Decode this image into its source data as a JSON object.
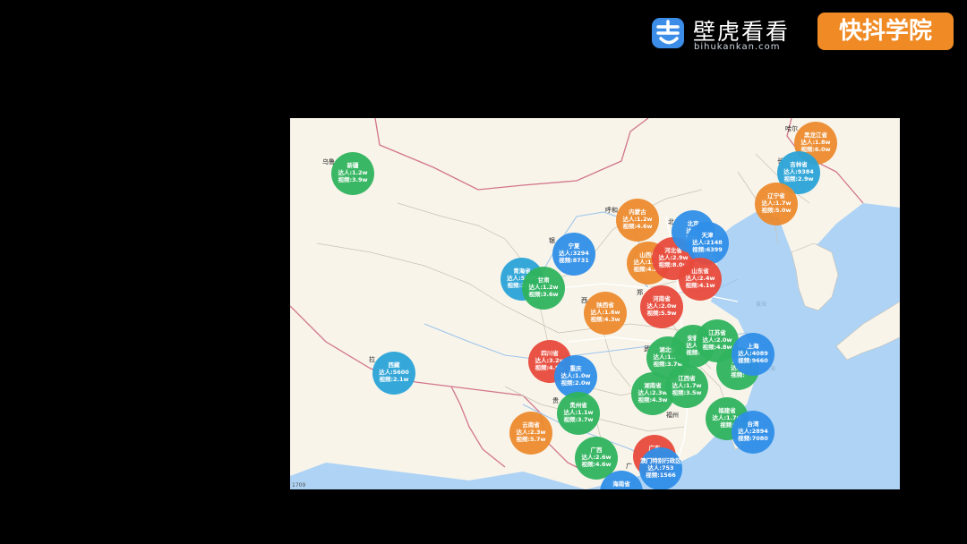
{
  "brand": {
    "bihu_name": "壁虎看看",
    "bihu_domain": "bihukankan.com",
    "kuaidou_label": "快抖学院",
    "colors": {
      "bihu_blue": "#3b8de8",
      "kuaidou_orange": "#f08a24"
    }
  },
  "map": {
    "scale_text": "1709",
    "colors": {
      "land": "#f8f4ea",
      "sea": "#aed3f5",
      "province_border": "#c9c2b2",
      "national_border": "#d2758c",
      "river": "#9fc6ea",
      "road": "#ffffff"
    },
    "place_labels": [
      {
        "id": "urumqi",
        "text": "乌鲁"
      },
      {
        "id": "hohhot",
        "text": "呼和"
      },
      {
        "id": "yinchuan",
        "text": "银"
      },
      {
        "id": "beijing",
        "text": "北"
      },
      {
        "id": "xining",
        "text": "西"
      },
      {
        "id": "zhengzhou",
        "text": "郑"
      },
      {
        "id": "wuhan",
        "text": "武"
      },
      {
        "id": "guiyang",
        "text": "贵"
      },
      {
        "id": "fuzhou",
        "text": "福州"
      },
      {
        "id": "nanning",
        "text": "南"
      },
      {
        "id": "guangzhou",
        "text": "广"
      },
      {
        "id": "harbin",
        "text": "哈尔"
      },
      {
        "id": "changchun",
        "text": "长"
      },
      {
        "id": "lasa",
        "text": "拉"
      }
    ],
    "sea_labels": [
      {
        "id": "huanghai",
        "text": "黄海"
      },
      {
        "id": "donghai",
        "text": "东海"
      }
    ],
    "icon_names": [
      "bihu-logo-icon"
    ],
    "bubbles": [
      {
        "id": "xinjiang",
        "name": "新疆",
        "l2": "达人:1.2w",
        "l3": "视频:3.9w",
        "color": "#2fb35d"
      },
      {
        "id": "xizang",
        "name": "西藏",
        "l2": "达人:5600",
        "l3": "视频:2.1w",
        "color": "#2aa3d8"
      },
      {
        "id": "qinghai",
        "name": "青海省",
        "l2": "达人:5708",
        "l3": "视频:2.0w",
        "color": "#2aa3d8"
      },
      {
        "id": "gansu",
        "name": "甘肃",
        "l2": "达人:1.2w",
        "l3": "视频:3.6w",
        "color": "#2fb35d"
      },
      {
        "id": "ningxia",
        "name": "宁夏",
        "l2": "达人:3294",
        "l3": "视频:8731",
        "color": "#2f8ee8"
      },
      {
        "id": "neimenggu",
        "name": "内蒙古",
        "l2": "达人:1.2w",
        "l3": "视频:4.6w",
        "color": "#ec8a2d"
      },
      {
        "id": "shanxi",
        "name": "山西省",
        "l2": "达人:1.6w",
        "l3": "视频:4.8w",
        "color": "#ec8a2d"
      },
      {
        "id": "hebei",
        "name": "河北省",
        "l2": "达人:2.9w",
        "l3": "视频:8.0w",
        "color": "#e84a3c"
      },
      {
        "id": "beijing",
        "name": "北京",
        "l2": "达人:",
        "l3": "视频:",
        "color": "#2f8ee8"
      },
      {
        "id": "tianjin",
        "name": "天津",
        "l2": "达人:2148",
        "l3": "视频:6399",
        "color": "#2f8ee8"
      },
      {
        "id": "shandong",
        "name": "山东省",
        "l2": "达人:2.4w",
        "l3": "视频:4.1w",
        "color": "#e84a3c"
      },
      {
        "id": "henan",
        "name": "河南省",
        "l2": "达人:2.0w",
        "l3": "视频:5.9w",
        "color": "#e84a3c"
      },
      {
        "id": "shaanxi",
        "name": "陕西省",
        "l2": "达人:1.6w",
        "l3": "视频:4.3w",
        "color": "#ec8a2d"
      },
      {
        "id": "sichuan",
        "name": "四川省",
        "l2": "达人:3.2w",
        "l3": "视频:4.9w",
        "color": "#e84a3c"
      },
      {
        "id": "chongqing",
        "name": "重庆",
        "l2": "达人:1.0w",
        "l3": "视频:2.0w",
        "color": "#2f8ee8"
      },
      {
        "id": "hubei",
        "name": "湖北省",
        "l2": "达人:1.7w",
        "l3": "视频:3.7w",
        "color": "#2fb35d"
      },
      {
        "id": "anhui",
        "name": "安徽",
        "l2": "达人:",
        "l3": "视频:",
        "color": "#2fb35d"
      },
      {
        "id": "jiangsu",
        "name": "江苏省",
        "l2": "达人:2.0w",
        "l3": "视频:4.8w",
        "color": "#2fb35d"
      },
      {
        "id": "zhejiang",
        "name": "浙江",
        "l2": "达人:",
        "l3": "视频:",
        "color": "#2fb35d"
      },
      {
        "id": "shanghai",
        "name": "上海",
        "l2": "达人:4089",
        "l3": "视频:9660",
        "color": "#2f8ee8"
      },
      {
        "id": "hunan",
        "name": "湖南省",
        "l2": "达人:2.3w",
        "l3": "视频:4.3w",
        "color": "#2fb35d"
      },
      {
        "id": "jiangxi",
        "name": "江西省",
        "l2": "达人:1.7w",
        "l3": "视频:3.5w",
        "color": "#2fb35d"
      },
      {
        "id": "guizhou",
        "name": "贵州省",
        "l2": "达人:1.1w",
        "l3": "视频:3.7w",
        "color": "#2fb35d"
      },
      {
        "id": "yunnan",
        "name": "云南省",
        "l2": "达人:2.3w",
        "l3": "视频:5.7w",
        "color": "#ec8a2d"
      },
      {
        "id": "guangxi",
        "name": "广西",
        "l2": "达人:2.6w",
        "l3": "视频:4.6w",
        "color": "#2fb35d"
      },
      {
        "id": "fujian",
        "name": "福建省",
        "l2": "达人:1.7w",
        "l3": "视频:",
        "color": "#2fb35d"
      },
      {
        "id": "taiwan",
        "name": "台湾",
        "l2": "达人:2894",
        "l3": "视频:7080",
        "color": "#2f8ee8"
      },
      {
        "id": "guangdong",
        "name": "广东",
        "l2": "",
        "l3": "",
        "color": "#e84a3c"
      },
      {
        "id": "macau",
        "name": "澳门特别行政区",
        "l2": "达人:753",
        "l3": "视频:1566",
        "color": "#2f8ee8"
      },
      {
        "id": "hainan",
        "name": "海南省",
        "l2": "",
        "l3": "",
        "color": "#2f8ee8"
      },
      {
        "id": "heilongjiang",
        "name": "黑龙江省",
        "l2": "达人:1.8w",
        "l3": "视频:6.0w",
        "color": "#ec8a2d"
      },
      {
        "id": "jilin",
        "name": "吉林省",
        "l2": "达人:9384",
        "l3": "视频:2.9w",
        "color": "#2aa3d8"
      },
      {
        "id": "liaoning",
        "name": "辽宁省",
        "l2": "达人:1.7w",
        "l3": "视频:5.0w",
        "color": "#ec8a2d"
      }
    ]
  }
}
